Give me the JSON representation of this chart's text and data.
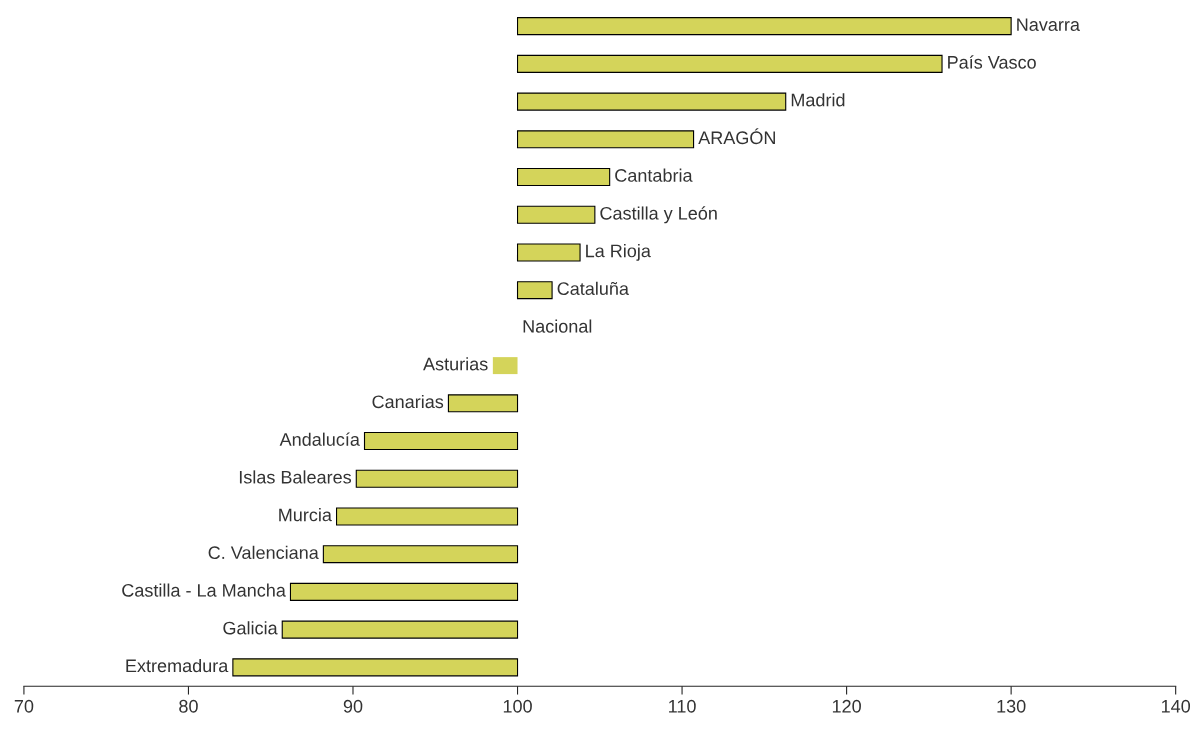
{
  "chart_data": {
    "type": "bar",
    "orientation": "horizontal",
    "categories": [
      "Navarra",
      "País Vasco",
      "Madrid",
      "ARAGÓN",
      "Cantabria",
      "Castilla y León",
      "La Rioja",
      "Cataluña",
      "Nacional",
      "Asturias",
      "Canarias",
      "Andalucía",
      "Islas Baleares",
      "Murcia",
      "C. Valenciana",
      "Castilla - La Mancha",
      "Galicia",
      "Extremadura"
    ],
    "base": [
      100,
      100,
      100,
      100,
      100,
      100,
      100,
      100,
      null,
      100,
      100,
      100,
      100,
      100,
      100,
      100,
      100,
      100
    ],
    "values": [
      30.0,
      25.8,
      16.3,
      10.7,
      5.6,
      4.7,
      3.8,
      2.1,
      null,
      -1.5,
      -4.2,
      -9.3,
      -9.8,
      -11.0,
      -11.8,
      -13.8,
      -14.3,
      -17.3
    ],
    "color": "#d4d45a",
    "xlim": [
      70,
      140
    ],
    "xticks": [
      70,
      80,
      90,
      100,
      110,
      120,
      130,
      140
    ],
    "tick_labels": "x",
    "grid": false,
    "legend": false
  }
}
